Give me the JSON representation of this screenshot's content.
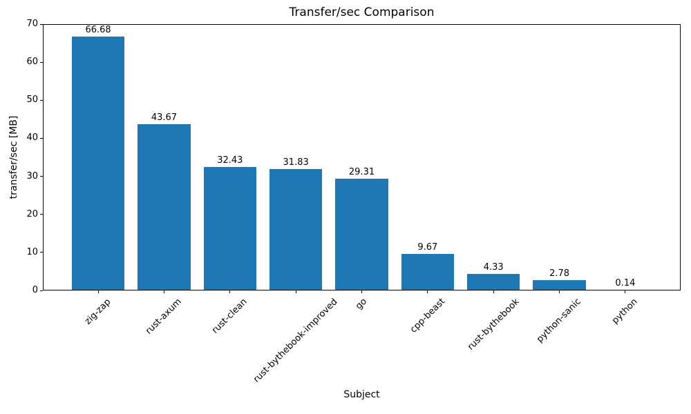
{
  "chart_data": {
    "type": "bar",
    "title": "Transfer/sec Comparison",
    "xlabel": "Subject",
    "ylabel": "transfer/sec [MB]",
    "categories": [
      "zig-zap",
      "rust-axum",
      "rust-clean",
      "rust-bythebook-improved",
      "go",
      "cpp-beast",
      "rust-bythebook",
      "python-sanic",
      "python"
    ],
    "values": [
      66.68,
      43.67,
      32.43,
      31.83,
      29.31,
      9.67,
      4.33,
      2.78,
      0.14
    ],
    "value_labels": [
      "66.68",
      "43.67",
      "32.43",
      "31.83",
      "29.31",
      "9.67",
      "4.33",
      "2.78",
      "0.14"
    ],
    "ylim": [
      0,
      70
    ],
    "yticks": [
      0,
      10,
      20,
      30,
      40,
      50,
      60,
      70
    ],
    "bar_color": "#1f77b4",
    "axis_color": "#000000",
    "background_color": "#ffffff",
    "grid": false,
    "legend": null,
    "x_tick_rotation_deg": 45
  }
}
